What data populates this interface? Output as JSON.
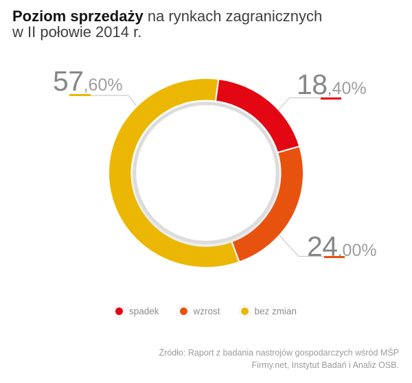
{
  "title": {
    "bold": "Poziom sprzedaży",
    "regular": " na rynkach zagranicznych",
    "line2": "w II połowie 2014 r."
  },
  "chart_data": {
    "type": "pie",
    "subtype": "donut",
    "title": "Poziom sprzedaży na rynkach zagranicznych w II połowie 2014 r.",
    "unit": "%",
    "start_angle_deg": 7.4,
    "legend_position": "bottom",
    "segments": [
      {
        "label": "spadek",
        "value": 18.4,
        "display_int": "18",
        "display_dec": ",40%",
        "color": "#e20713"
      },
      {
        "label": "wzrost",
        "value": 24.0,
        "display_int": "24",
        "display_dec": ",00%",
        "color": "#e8520f"
      },
      {
        "label": "bez zmian",
        "value": 57.6,
        "display_int": "57",
        "display_dec": ",60%",
        "color": "#ecb704"
      }
    ]
  },
  "source": {
    "line1": "Źródło: Raport z badania nastrojów gospodarczych wśród MŚP",
    "line2": "Firmy.net, Instytut Badań i Analiz OSB."
  }
}
